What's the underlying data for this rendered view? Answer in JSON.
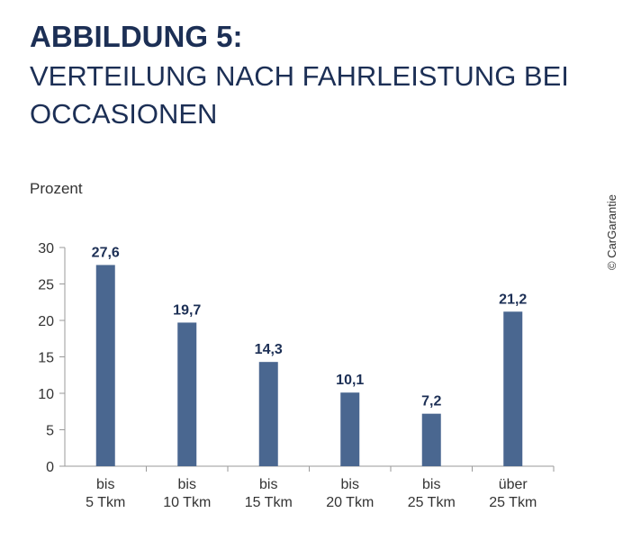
{
  "header": {
    "title_bold": "ABBILDUNG 5:",
    "title_line1": "VERTEILUNG NACH FAHRLEISTUNG BEI",
    "title_line2": "OCCASIONEN"
  },
  "copyright": "© CarGarantie",
  "chart_data": {
    "type": "bar",
    "ylabel": "Prozent",
    "categories": [
      [
        "bis",
        "5 Tkm"
      ],
      [
        "bis",
        "10 Tkm"
      ],
      [
        "bis",
        "15 Tkm"
      ],
      [
        "bis",
        "20 Tkm"
      ],
      [
        "bis",
        "25 Tkm"
      ],
      [
        "über",
        "25 Tkm"
      ]
    ],
    "values": [
      27.6,
      19.7,
      14.3,
      10.1,
      7.2,
      21.2
    ],
    "value_labels": [
      "27,6",
      "19,7",
      "14,3",
      "10,1",
      "7,2",
      "21,2"
    ],
    "ylim": [
      0,
      30
    ],
    "yticks": [
      0,
      5,
      10,
      15,
      20,
      25,
      30
    ],
    "grid": false,
    "bar_color": "#4a6790"
  }
}
